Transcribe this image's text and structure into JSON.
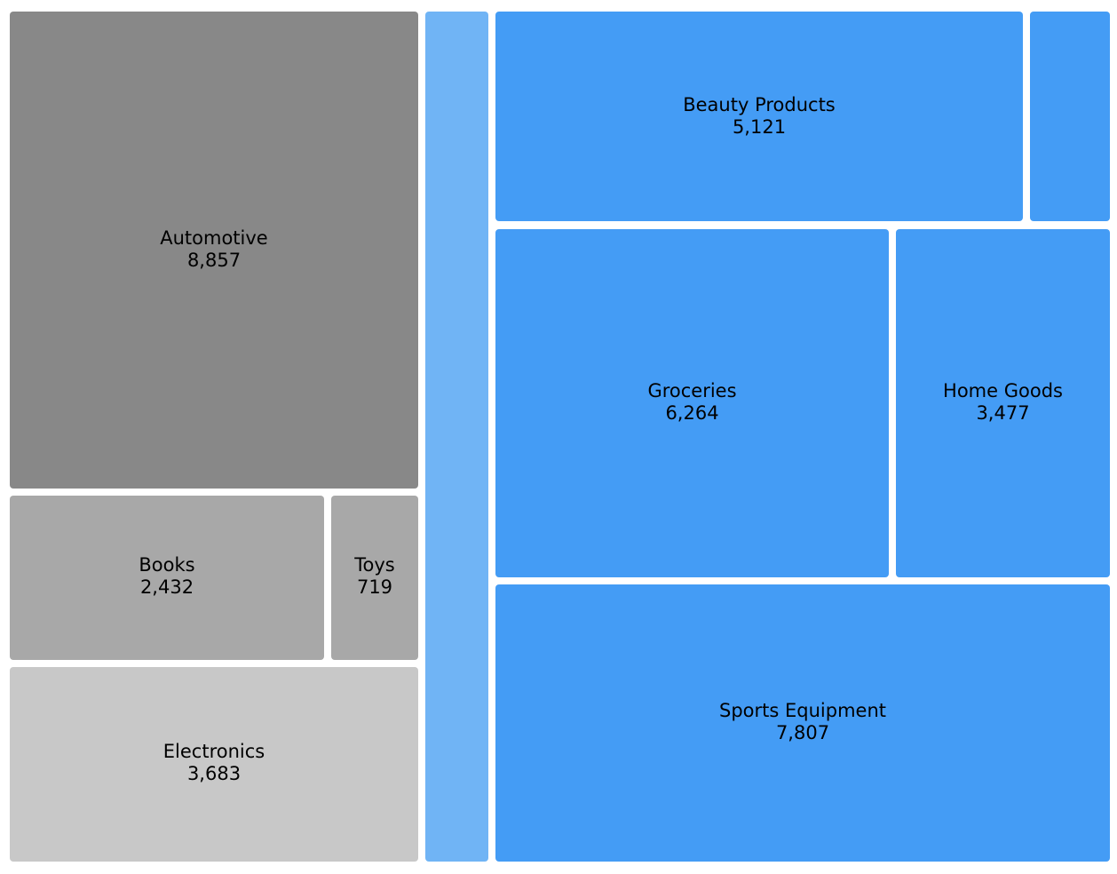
{
  "chart_data": {
    "type": "treemap",
    "groups": [
      {
        "color": "#888888",
        "items": [
          {
            "name": "Automotive",
            "value": 8857,
            "value_label": "8,857",
            "color": "#888888"
          },
          {
            "name": "Books",
            "value": 2432,
            "value_label": "2,432",
            "color": "#a8a8a8"
          },
          {
            "name": "Toys",
            "value": 719,
            "value_label": "719",
            "color": "#a8a8a8"
          },
          {
            "name": "Electronics",
            "value": 3683,
            "value_label": "3,683",
            "color": "#c8c8c8"
          }
        ]
      },
      {
        "color": "#449cf5",
        "items": [
          {
            "name": "",
            "value": null,
            "value_label": "",
            "color": "#70b4f5"
          },
          {
            "name": "Beauty Products",
            "value": 5121,
            "value_label": "5,121",
            "color": "#449cf5"
          },
          {
            "name": "",
            "value": null,
            "value_label": "",
            "color": "#449cf5"
          },
          {
            "name": "Groceries",
            "value": 6264,
            "value_label": "6,264",
            "color": "#449cf5"
          },
          {
            "name": "Home Goods",
            "value": 3477,
            "value_label": "3,477",
            "color": "#449cf5"
          },
          {
            "name": "Sports Equipment",
            "value": 7807,
            "value_label": "7,807",
            "color": "#449cf5"
          }
        ]
      }
    ]
  }
}
